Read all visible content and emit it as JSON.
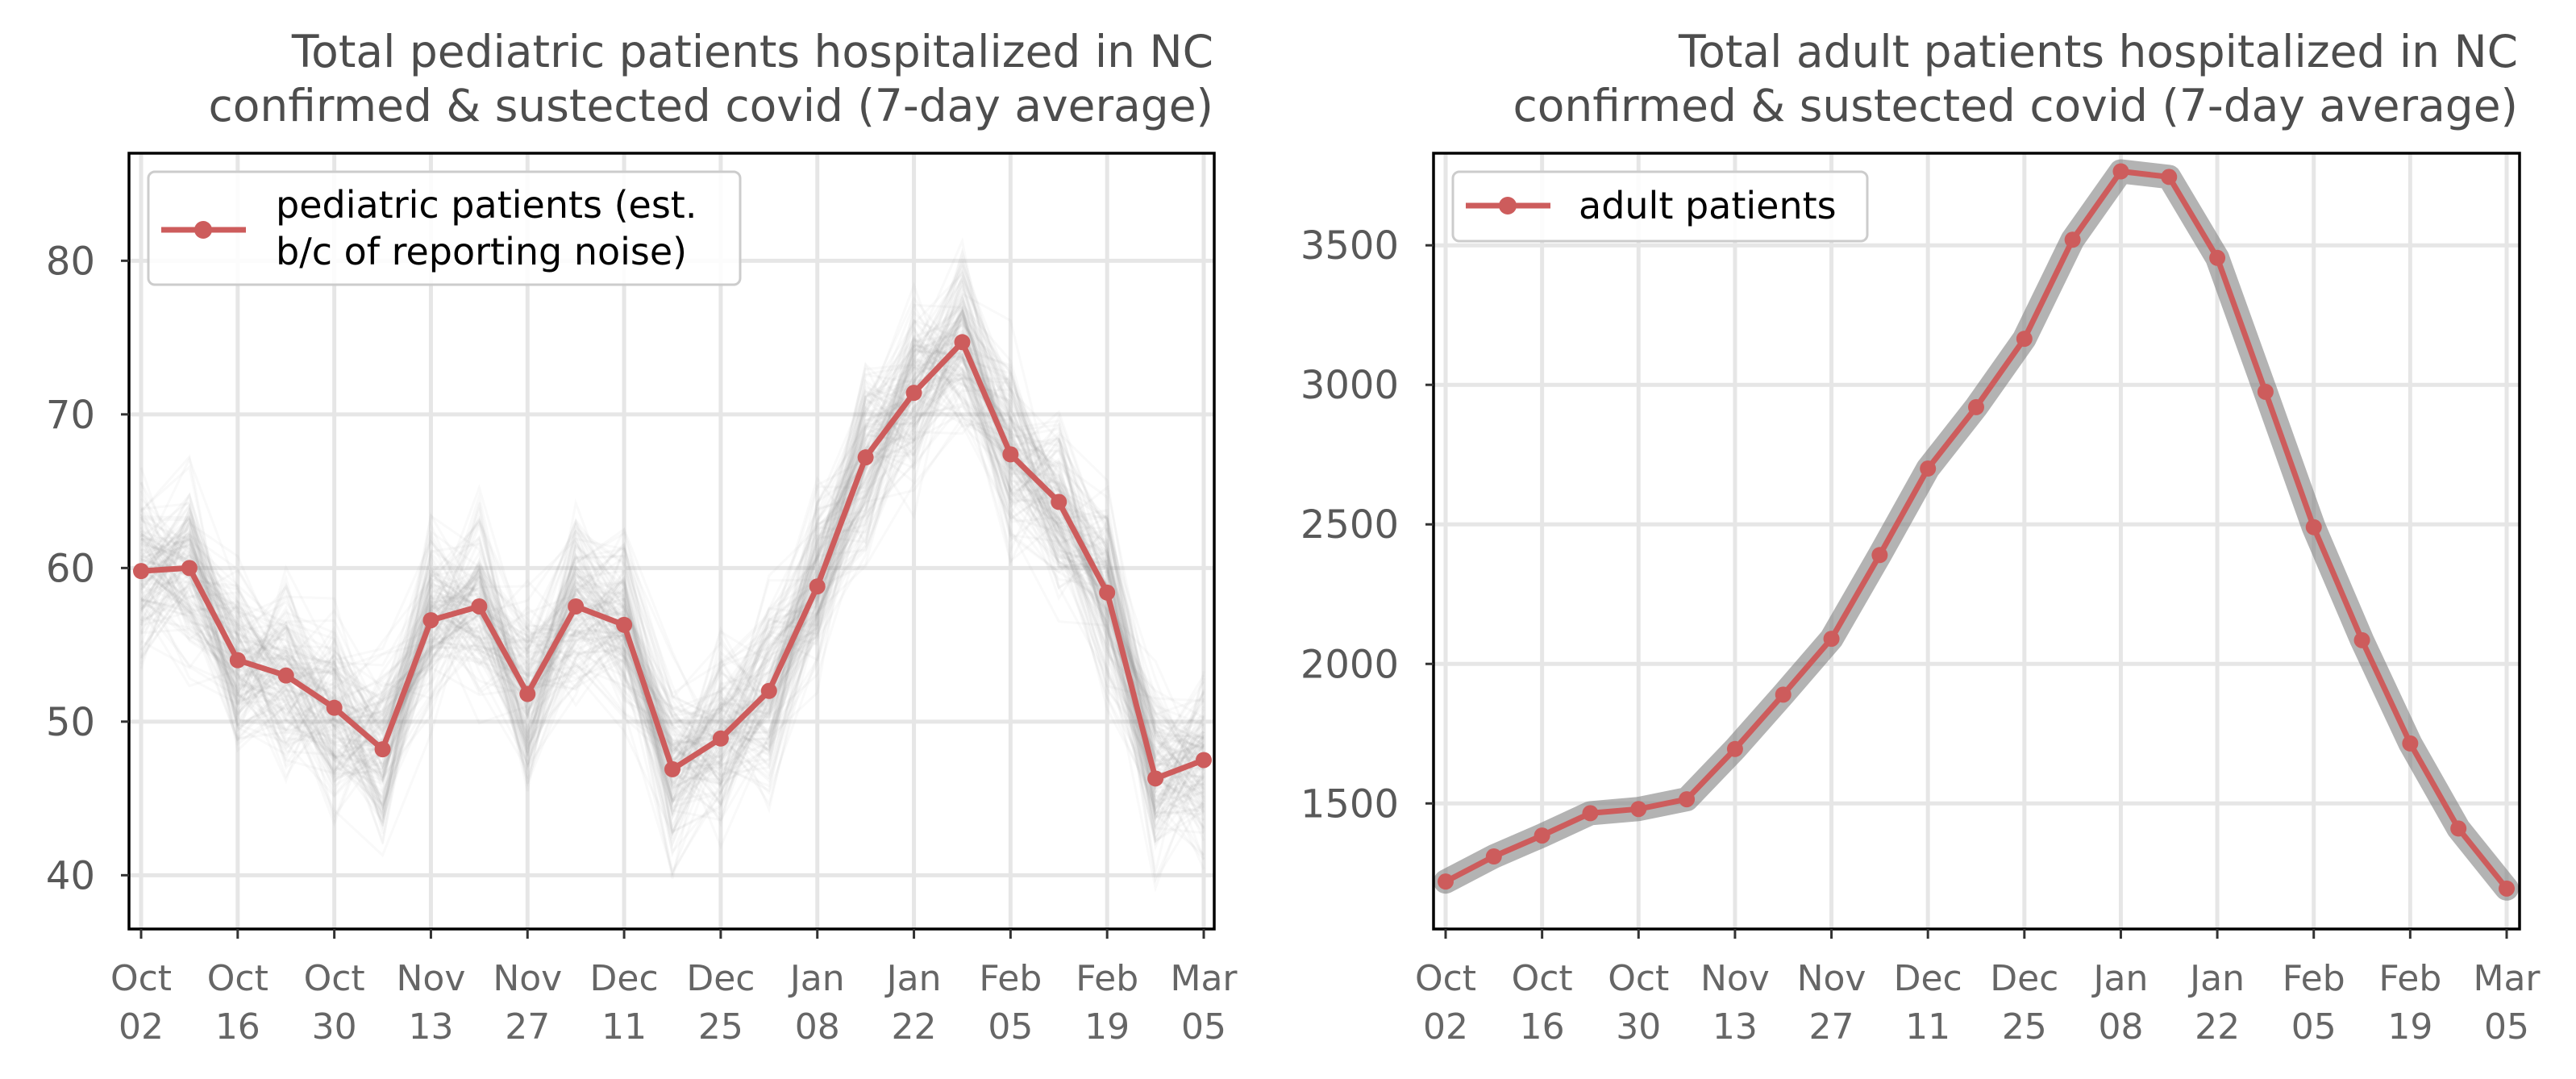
{
  "colors": {
    "series": "#cd5c5c",
    "uncertainty": "#808080",
    "grid": "#e6e6e6",
    "axis": "#000000"
  },
  "chart_data": [
    {
      "type": "line",
      "title": "Total pediatric patients hospitalized in NC confirmed & sustected covid (7-day average)",
      "title_lines": [
        "Total pediatric patients hospitalized in NC",
        "confirmed & sustected covid (7-day average)"
      ],
      "xlabel": "",
      "ylabel": "",
      "x": [
        "Oct 02",
        "Oct 09",
        "Oct 16",
        "Oct 23",
        "Oct 30",
        "Nov 06",
        "Nov 13",
        "Nov 20",
        "Nov 27",
        "Dec 04",
        "Dec 11",
        "Dec 18",
        "Dec 25",
        "Jan 01",
        "Jan 08",
        "Jan 15",
        "Jan 22",
        "Jan 29",
        "Feb 05",
        "Feb 12",
        "Feb 19",
        "Feb 26",
        "Mar 05"
      ],
      "x_tick_labels": [
        [
          "Oct",
          "02"
        ],
        [
          "Oct",
          "16"
        ],
        [
          "Oct",
          "30"
        ],
        [
          "Nov",
          "13"
        ],
        [
          "Nov",
          "27"
        ],
        [
          "Dec",
          "11"
        ],
        [
          "Dec",
          "25"
        ],
        [
          "Jan",
          "08"
        ],
        [
          "Jan",
          "22"
        ],
        [
          "Feb",
          "05"
        ],
        [
          "Feb",
          "19"
        ],
        [
          "Mar",
          "05"
        ]
      ],
      "series": [
        {
          "name": "pediatric patients (est. b/c of reporting noise)",
          "legend_lines": [
            "pediatric patients (est.",
            "b/c of reporting noise)"
          ],
          "values": [
            59.8,
            60.0,
            54.0,
            53.0,
            50.9,
            48.2,
            56.6,
            57.5,
            51.8,
            57.5,
            56.3,
            46.9,
            48.9,
            52.0,
            58.8,
            67.2,
            71.4,
            74.7,
            67.4,
            64.3,
            58.4,
            46.3,
            47.5
          ]
        }
      ],
      "band_spread": 6.0,
      "ylim": [
        36.5,
        87
      ],
      "yticks": [
        40,
        50,
        60,
        70,
        80
      ],
      "grid": true,
      "legend": "upper-left"
    },
    {
      "type": "line",
      "title": "Total adult patients hospitalized in NC confirmed & sustected covid (7-day average)",
      "title_lines": [
        "Total adult patients hospitalized in NC",
        "confirmed & sustected covid (7-day average)"
      ],
      "xlabel": "",
      "ylabel": "",
      "x": [
        "Oct 02",
        "Oct 09",
        "Oct 16",
        "Oct 23",
        "Oct 30",
        "Nov 06",
        "Nov 13",
        "Nov 20",
        "Nov 27",
        "Dec 04",
        "Dec 11",
        "Dec 18",
        "Dec 25",
        "Jan 01",
        "Jan 08",
        "Jan 15",
        "Jan 22",
        "Jan 29",
        "Feb 05",
        "Feb 12",
        "Feb 19",
        "Feb 26",
        "Mar 05"
      ],
      "x_tick_labels": [
        [
          "Oct",
          "02"
        ],
        [
          "Oct",
          "16"
        ],
        [
          "Oct",
          "30"
        ],
        [
          "Nov",
          "13"
        ],
        [
          "Nov",
          "27"
        ],
        [
          "Dec",
          "11"
        ],
        [
          "Dec",
          "25"
        ],
        [
          "Jan",
          "08"
        ],
        [
          "Jan",
          "22"
        ],
        [
          "Feb",
          "05"
        ],
        [
          "Feb",
          "19"
        ],
        [
          "Mar",
          "05"
        ]
      ],
      "series": [
        {
          "name": "adult patients",
          "legend_lines": [
            "adult patients"
          ],
          "values": [
            1220,
            1310,
            1385,
            1465,
            1480,
            1515,
            1695,
            1890,
            2090,
            2390,
            2700,
            2920,
            3165,
            3520,
            3765,
            3745,
            3455,
            2975,
            2490,
            2085,
            1715,
            1410,
            1195
          ]
        }
      ],
      "band_spread": 30,
      "ylim": [
        1050,
        3830
      ],
      "yticks": [
        1500,
        2000,
        2500,
        3000,
        3500
      ],
      "grid": true,
      "legend": "upper-left"
    }
  ]
}
